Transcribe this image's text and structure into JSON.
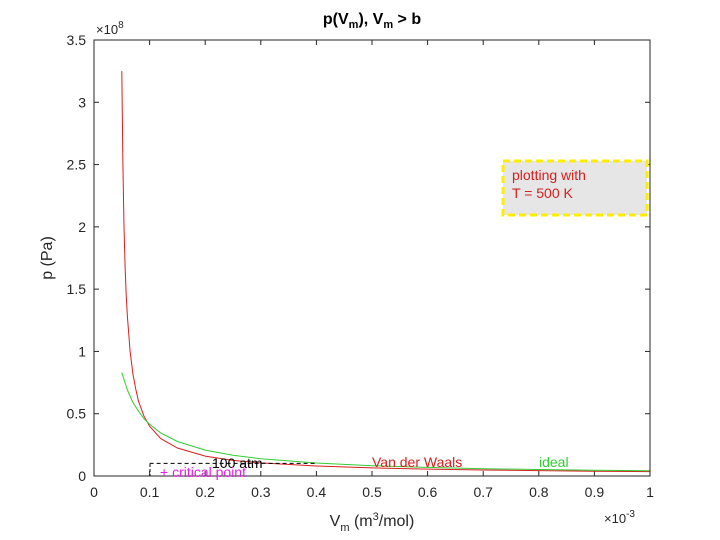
{
  "chart_data": {
    "type": "line",
    "title_main": "p(V",
    "title_sub1": "m",
    "title_mid": "), V",
    "title_sub2": "m",
    "title_end": " > b",
    "xlabel_main": "V",
    "xlabel_sub": "m",
    "xlabel_open": " (m",
    "xlabel_sup": "3",
    "xlabel_close": "/mol)",
    "ylabel": "p (Pa)",
    "x_exponent_base": "×10",
    "x_exponent": "-3",
    "y_exponent_base": "×10",
    "y_exponent": "8",
    "xlim": [
      0,
      0.001
    ],
    "ylim": [
      0,
      350000000
    ],
    "xticks": [
      "0",
      "0.1",
      "0.2",
      "0.3",
      "0.4",
      "0.5",
      "0.6",
      "0.7",
      "0.8",
      "0.9",
      "1"
    ],
    "yticks": [
      "0",
      "0.5",
      "1",
      "1.5",
      "2",
      "2.5",
      "3",
      "3.5"
    ],
    "series": [
      {
        "name": "Van der Waals",
        "color": "#d62020",
        "x": [
          5e-05,
          5.2e-05,
          5.4e-05,
          5.6e-05,
          5.8e-05,
          6e-05,
          6.5e-05,
          7e-05,
          7.5e-05,
          8e-05,
          9e-05,
          0.0001,
          0.00012,
          0.00015,
          0.0002,
          0.00025,
          0.0003,
          0.0004,
          0.0005,
          0.0006,
          0.0007,
          0.0008,
          0.0009,
          0.001
        ],
        "y": [
          325000000,
          250000000,
          200000000,
          168000000,
          145000000,
          128000000,
          100000000,
          82000000,
          70000000,
          60000000,
          48000000,
          40000000,
          30000000,
          22500000,
          16000000,
          12500000,
          10500000,
          8000000,
          6500000,
          5500000,
          4800000,
          4300000,
          3800000,
          3500000
        ]
      },
      {
        "name": "ideal",
        "color": "#33cc33",
        "x": [
          5e-05,
          6e-05,
          7e-05,
          8e-05,
          9e-05,
          0.0001,
          0.00012,
          0.00015,
          0.0002,
          0.00025,
          0.0003,
          0.0004,
          0.0005,
          0.0006,
          0.0007,
          0.0008,
          0.0009,
          0.001
        ],
        "y": [
          83000000,
          69000000,
          59000000,
          52000000,
          46000000,
          41500000,
          34600000,
          27700000,
          20800000,
          16600000,
          13900000,
          10400000,
          8300000,
          6900000,
          5900000,
          5200000,
          4600000,
          4200000
        ]
      }
    ],
    "reference_line": {
      "label": "100 atm",
      "y": 10132500,
      "x_from": 0.0001,
      "x_to": 0.0004
    },
    "annotations": {
      "critical": "+ critical point",
      "vdw_label": "Van der Waals",
      "ideal_label": "ideal",
      "box_line1": "plotting with",
      "box_line2": "T = 500 K"
    },
    "colors": {
      "vdw": "#d62020",
      "ideal": "#33cc33",
      "critical": "#e020e0",
      "box_border": "#ffee00",
      "box_fill": "#e6e6e6"
    }
  }
}
